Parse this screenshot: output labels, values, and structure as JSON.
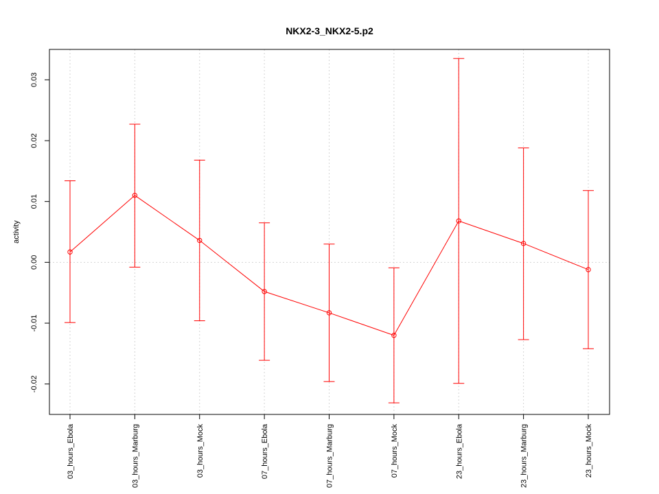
{
  "chart_data": {
    "type": "line",
    "title": "NKX2-3_NKX2-5.p2",
    "xlabel": "",
    "ylabel": "activity",
    "ylim": [
      -0.025,
      0.035
    ],
    "yticks": [
      -0.02,
      -0.01,
      0.0,
      0.01,
      0.02,
      0.03
    ],
    "ytick_labels": [
      "-0.02",
      "-0.01",
      "0.00",
      "0.01",
      "0.02",
      "0.03"
    ],
    "grid": true,
    "categories": [
      "03_hours_Ebola",
      "03_hours_Marburg",
      "03_hours_Mock",
      "07_hours_Ebola",
      "07_hours_Marburg",
      "07_hours_Mock",
      "23_hours_Ebola",
      "23_hours_Marburg",
      "23_hours_Mock"
    ],
    "series": [
      {
        "color": "#ff0000",
        "values": [
          0.0017,
          0.011,
          0.0036,
          -0.0048,
          -0.0083,
          -0.012,
          0.0068,
          0.0031,
          -0.0012
        ],
        "error_upper": [
          0.0134,
          0.0227,
          0.0168,
          0.0065,
          0.003,
          -0.0009,
          0.0335,
          0.0188,
          0.0118
        ],
        "error_lower": [
          -0.0099,
          -0.0008,
          -0.0096,
          -0.0161,
          -0.0196,
          -0.0231,
          -0.0199,
          -0.0127,
          -0.0142
        ]
      }
    ]
  }
}
